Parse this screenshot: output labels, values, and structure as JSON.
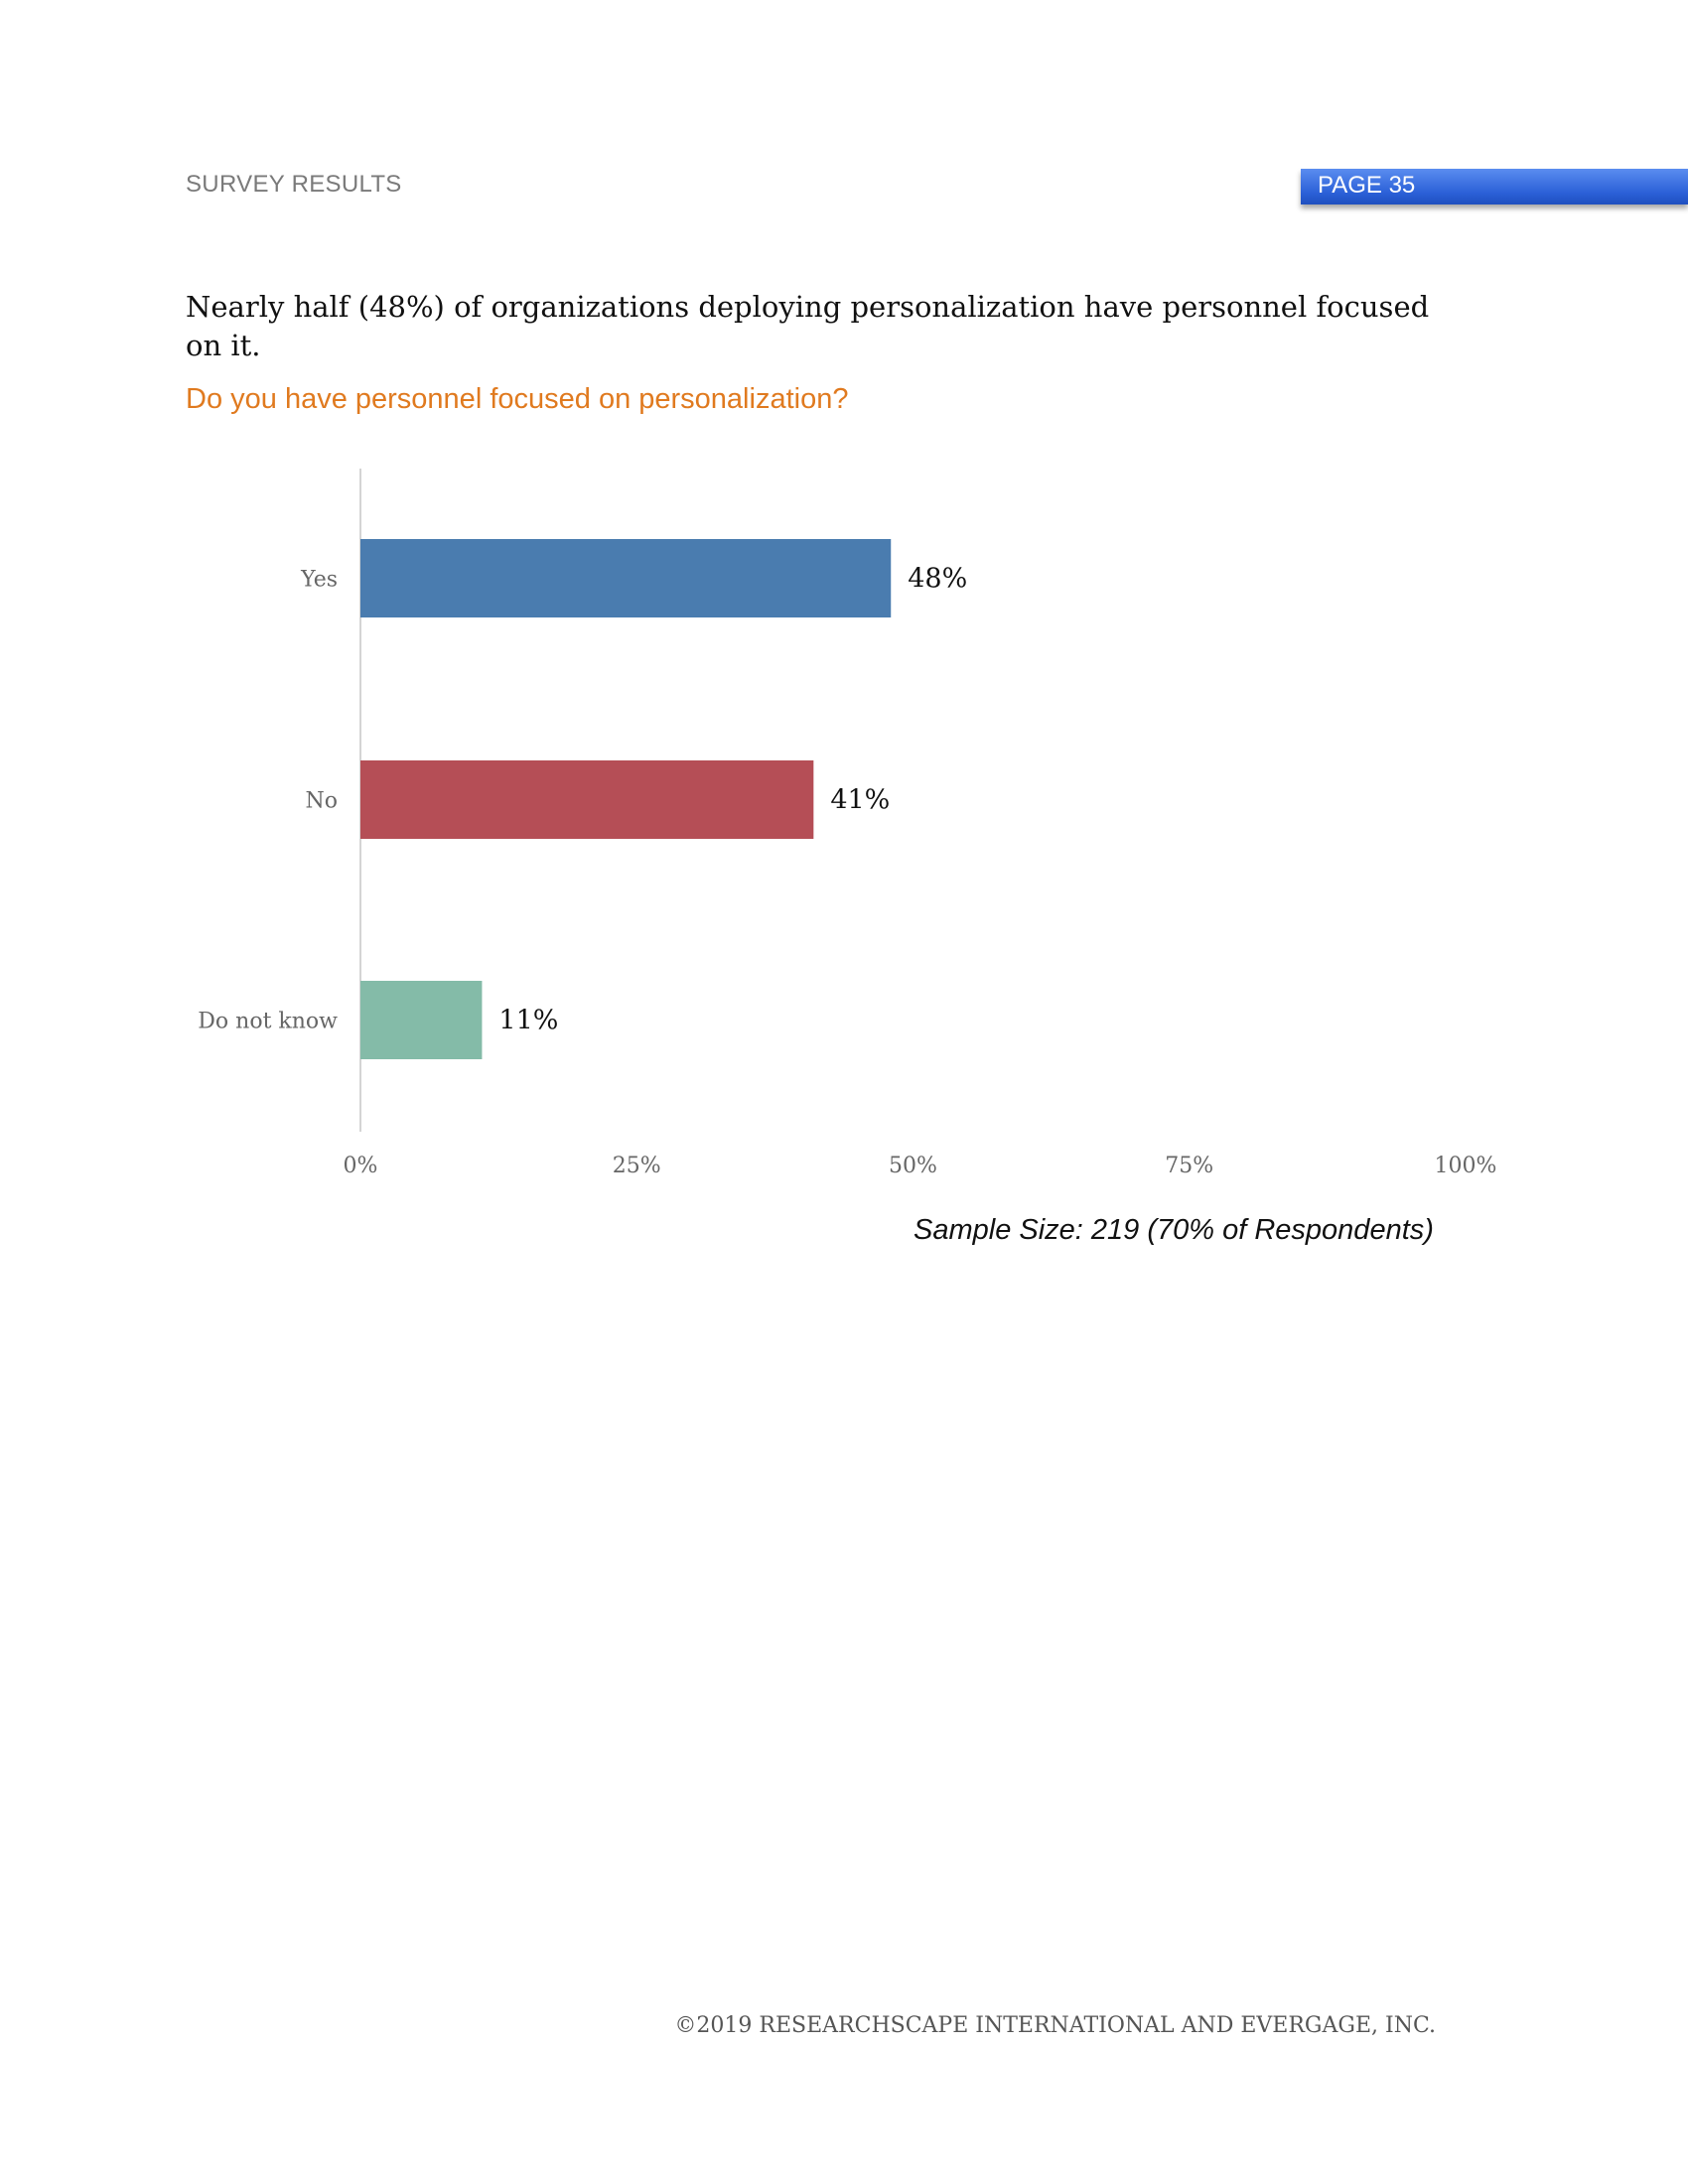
{
  "header": {
    "section": "SURVEY RESULTS",
    "page": "PAGE 35"
  },
  "headline": "Nearly half (48%) of organizations deploying personalization have personnel focused on it.",
  "question": "Do you have personnel focused on personalization?",
  "chart_data": {
    "type": "bar",
    "orientation": "horizontal",
    "categories": [
      "Yes",
      "No",
      "Do not know"
    ],
    "values": [
      48,
      41,
      11
    ],
    "value_labels": [
      "48%",
      "41%",
      "11%"
    ],
    "colors": [
      "#4a7caf",
      "#b54e56",
      "#84bba8"
    ],
    "xlim": [
      0,
      100
    ],
    "xticks": [
      "0%",
      "25%",
      "50%",
      "75%",
      "100%"
    ],
    "grid": false
  },
  "sample_size": "Sample Size: 219 (70% of Respondents)",
  "footer": "©2019  RESEARCHSCAPE INTERNATIONAL AND EVERGAGE, INC."
}
